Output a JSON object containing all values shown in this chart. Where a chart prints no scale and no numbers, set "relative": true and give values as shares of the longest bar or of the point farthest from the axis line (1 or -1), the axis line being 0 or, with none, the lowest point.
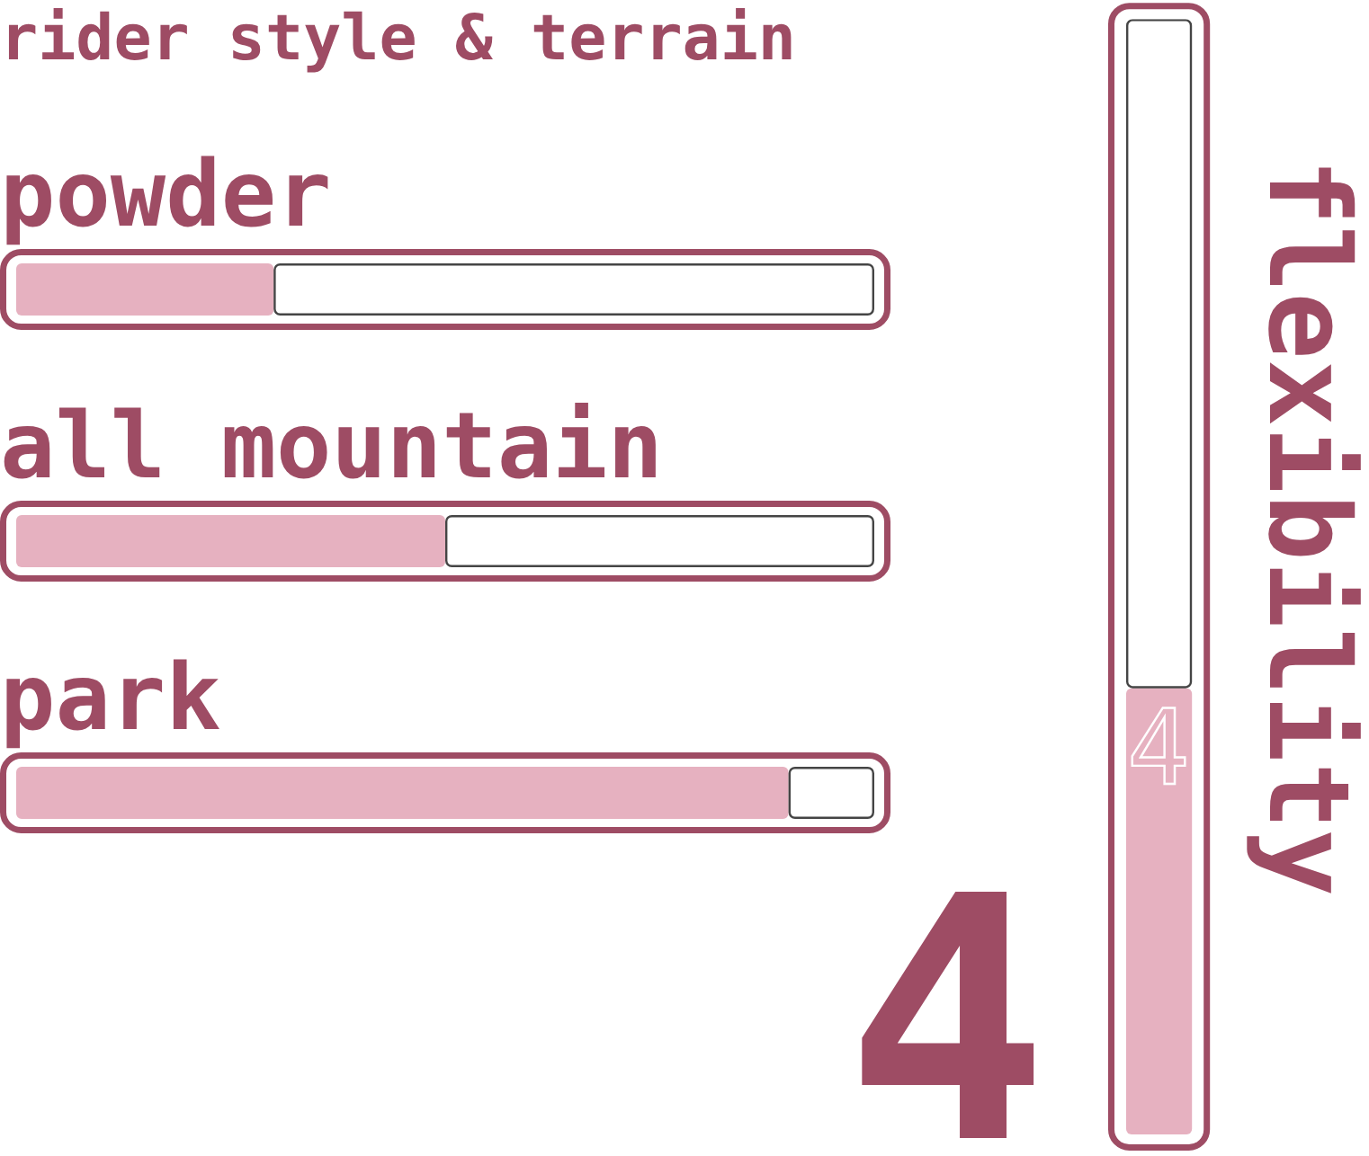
{
  "chart_data": [
    {
      "type": "bar",
      "title": "rider style & terrain",
      "orientation": "horizontal",
      "relative": true,
      "stacked": true,
      "categories": [
        "powder",
        "all mountain",
        "park"
      ],
      "series": [
        {
          "color": "#e6b1c0",
          "values": [
            0.3,
            0.5,
            0.9
          ]
        },
        {
          "color": "#ffffff",
          "values": [
            0.7,
            0.5,
            0.1
          ]
        }
      ]
    },
    {
      "type": "bar",
      "ylabel": "flexibility",
      "stacked": true,
      "categories": [
        null
      ],
      "series": [
        {
          "color": "#e6b1c0",
          "values": [
            4
          ],
          "value_labels": [
            "4"
          ]
        },
        {
          "color": "#ffffff",
          "values": [
            6
          ]
        }
      ],
      "annotations": [
        {
          "text": "4",
          "y": 4
        }
      ],
      "tick_labels": false
    }
  ]
}
